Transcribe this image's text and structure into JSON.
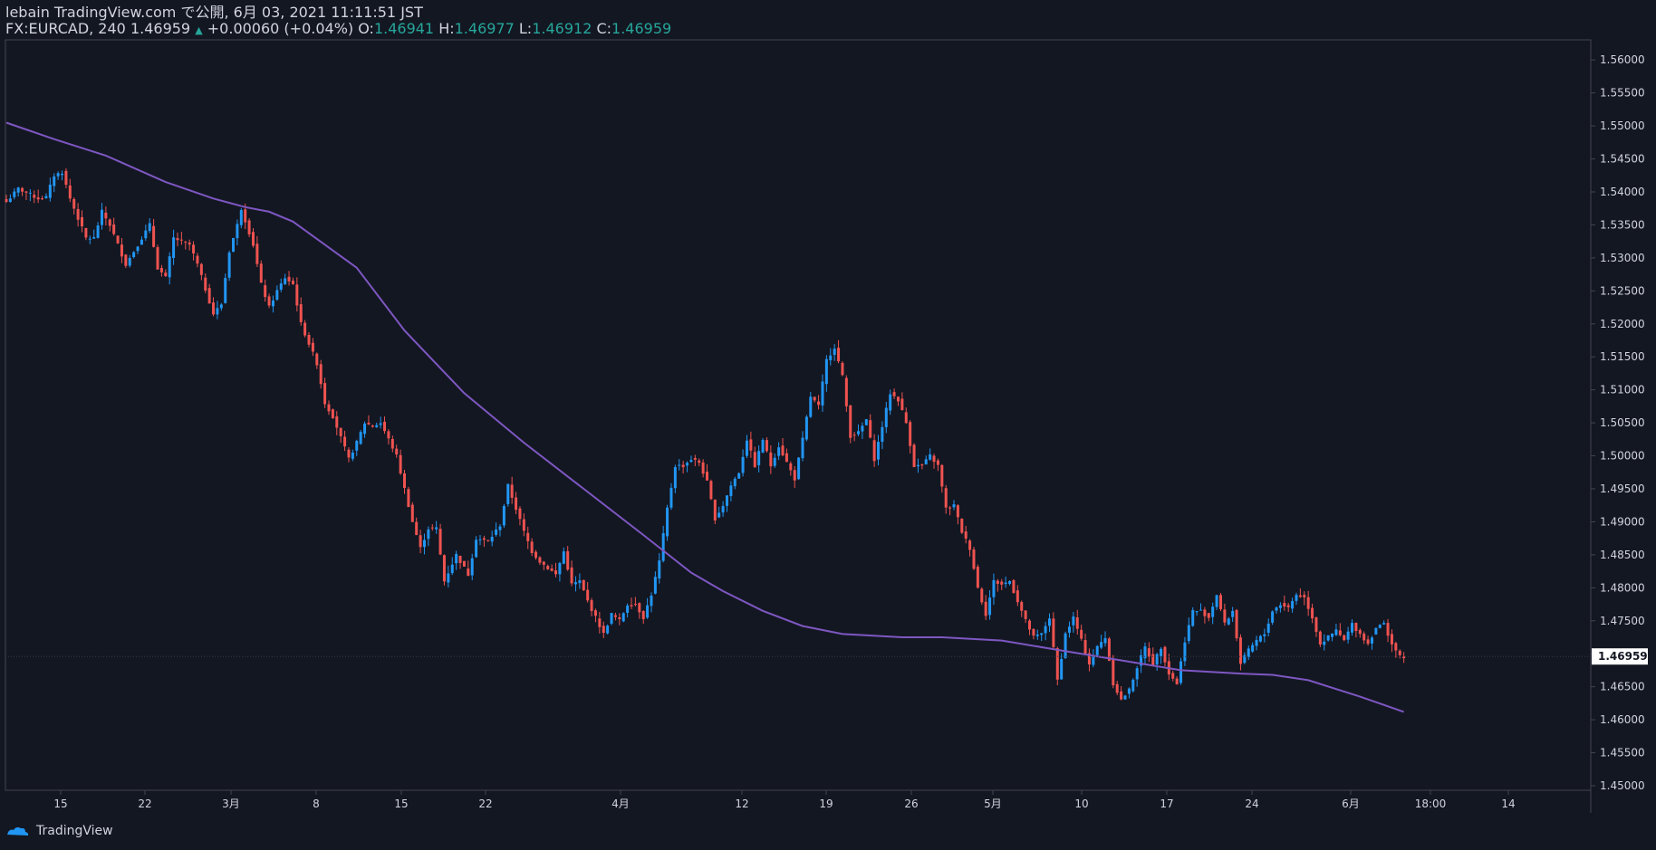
{
  "header": {
    "line1": "lebain TradingView.com で公開, 6月 03, 2021 11:11:51 JST",
    "symbol": "FX:EURCAD, 240",
    "last": "1.46959",
    "change": "+0.00060 (+0.04%)",
    "o_label": "O:",
    "o_val": "1.46941",
    "h_label": "H:",
    "h_val": "1.46977",
    "l_label": "L:",
    "l_val": "1.46912",
    "c_label": "C:",
    "c_val": "1.46959"
  },
  "footer": {
    "brand": "TradingView"
  },
  "colors": {
    "background": "#131722",
    "up": "#2196f3",
    "down": "#ef5350",
    "ma": "#7e57c2",
    "text": "#d1d4dc",
    "change": "#26a69a"
  },
  "chart_data": {
    "type": "candlestick",
    "title": "FX:EURCAD, 240",
    "ylim": [
      1.45,
      1.5625
    ],
    "y_ticks": [
      "1.56000",
      "1.55500",
      "1.55000",
      "1.54500",
      "1.54000",
      "1.53500",
      "1.53000",
      "1.52500",
      "1.52000",
      "1.51500",
      "1.51000",
      "1.50500",
      "1.50000",
      "1.49500",
      "1.49000",
      "1.48500",
      "1.48000",
      "1.47500",
      "1.47000",
      "1.46500",
      "1.46000",
      "1.45500",
      "1.45000"
    ],
    "x_ticks": [
      "15",
      "22",
      "3月",
      "8",
      "15",
      "22",
      "4月",
      "12",
      "19",
      "26",
      "5月",
      "10",
      "17",
      "24",
      "6月",
      "18:00",
      "14"
    ],
    "last_price_label": "1.46959",
    "close_path": [
      [
        0,
        1.5385
      ],
      [
        3,
        1.5405
      ],
      [
        8,
        1.539
      ],
      [
        10,
        1.5392
      ],
      [
        12,
        1.5425
      ],
      [
        14,
        1.543
      ],
      [
        16,
        1.539
      ],
      [
        20,
        1.533
      ],
      [
        22,
        1.533
      ],
      [
        24,
        1.537
      ],
      [
        26,
        1.535
      ],
      [
        30,
        1.529
      ],
      [
        32,
        1.531
      ],
      [
        36,
        1.535
      ],
      [
        38,
        1.5285
      ],
      [
        40,
        1.527
      ],
      [
        42,
        1.533
      ],
      [
        46,
        1.532
      ],
      [
        48,
        1.529
      ],
      [
        52,
        1.5215
      ],
      [
        54,
        1.523
      ],
      [
        56,
        1.531
      ],
      [
        58,
        1.535
      ],
      [
        59,
        1.5375
      ],
      [
        62,
        1.532
      ],
      [
        64,
        1.526
      ],
      [
        66,
        1.5225
      ],
      [
        68,
        1.525
      ],
      [
        70,
        1.527
      ],
      [
        72,
        1.526
      ],
      [
        74,
        1.52
      ],
      [
        78,
        1.514
      ],
      [
        80,
        1.508
      ],
      [
        82,
        1.506
      ],
      [
        86,
        1.4995
      ],
      [
        88,
        1.502
      ],
      [
        90,
        1.505
      ],
      [
        92,
        1.5045
      ],
      [
        94,
        1.505
      ],
      [
        98,
        1.5
      ],
      [
        102,
        1.49
      ],
      [
        104,
        1.486
      ],
      [
        106,
        1.489
      ],
      [
        108,
        1.489
      ],
      [
        110,
        1.481
      ],
      [
        113,
        1.485
      ],
      [
        116,
        1.482
      ],
      [
        118,
        1.4875
      ],
      [
        121,
        1.487
      ],
      [
        124,
        1.4895
      ],
      [
        126,
        1.4955
      ],
      [
        128,
        1.492
      ],
      [
        130,
        1.4885
      ],
      [
        132,
        1.4855
      ],
      [
        134,
        1.484
      ],
      [
        136,
        1.483
      ],
      [
        138,
        1.482
      ],
      [
        140,
        1.4855
      ],
      [
        142,
        1.4805
      ],
      [
        144,
        1.481
      ],
      [
        146,
        1.478
      ],
      [
        148,
        1.4755
      ],
      [
        150,
        1.473
      ],
      [
        152,
        1.476
      ],
      [
        154,
        1.475
      ],
      [
        156,
        1.4775
      ],
      [
        158,
        1.4775
      ],
      [
        160,
        1.4755
      ],
      [
        162,
        1.479
      ],
      [
        164,
        1.484
      ],
      [
        166,
        1.492
      ],
      [
        168,
        1.4985
      ],
      [
        170,
        1.4985
      ],
      [
        172,
        1.4995
      ],
      [
        174,
        1.499
      ],
      [
        176,
        1.496
      ],
      [
        178,
        1.4905
      ],
      [
        180,
        1.4925
      ],
      [
        182,
        1.4955
      ],
      [
        184,
        1.4975
      ],
      [
        186,
        1.5025
      ],
      [
        188,
        1.4985
      ],
      [
        190,
        1.5025
      ],
      [
        192,
        1.4985
      ],
      [
        194,
        1.5015
      ],
      [
        196,
        1.499
      ],
      [
        198,
        1.4965
      ],
      [
        200,
        1.5025
      ],
      [
        202,
        1.509
      ],
      [
        204,
        1.5075
      ],
      [
        206,
        1.5145
      ],
      [
        208,
        1.5165
      ],
      [
        210,
        1.512
      ],
      [
        212,
        1.503
      ],
      [
        214,
        1.5035
      ],
      [
        216,
        1.5055
      ],
      [
        218,
        1.4995
      ],
      [
        220,
        1.5045
      ],
      [
        222,
        1.5095
      ],
      [
        224,
        1.5085
      ],
      [
        226,
        1.505
      ],
      [
        228,
        1.4985
      ],
      [
        230,
        1.4985
      ],
      [
        232,
        1.5
      ],
      [
        234,
        1.4985
      ],
      [
        236,
        1.492
      ],
      [
        238,
        1.4925
      ],
      [
        240,
        1.4885
      ],
      [
        242,
        1.486
      ],
      [
        244,
        1.48
      ],
      [
        246,
        1.476
      ],
      [
        248,
        1.481
      ],
      [
        250,
        1.4805
      ],
      [
        252,
        1.481
      ],
      [
        254,
        1.478
      ],
      [
        256,
        1.475
      ],
      [
        258,
        1.4725
      ],
      [
        260,
        1.473
      ],
      [
        262,
        1.4755
      ],
      [
        264,
        1.466
      ],
      [
        266,
        1.473
      ],
      [
        268,
        1.4755
      ],
      [
        270,
        1.472
      ],
      [
        272,
        1.4685
      ],
      [
        274,
        1.471
      ],
      [
        276,
        1.4725
      ],
      [
        278,
        1.4655
      ],
      [
        280,
        1.463
      ],
      [
        282,
        1.4645
      ],
      [
        284,
        1.468
      ],
      [
        286,
        1.471
      ],
      [
        288,
        1.4685
      ],
      [
        290,
        1.471
      ],
      [
        292,
        1.467
      ],
      [
        294,
        1.4655
      ],
      [
        296,
        1.472
      ],
      [
        298,
        1.4765
      ],
      [
        300,
        1.4765
      ],
      [
        302,
        1.4755
      ],
      [
        304,
        1.479
      ],
      [
        306,
        1.4745
      ],
      [
        308,
        1.4765
      ],
      [
        310,
        1.4685
      ],
      [
        312,
        1.4705
      ],
      [
        314,
        1.472
      ],
      [
        316,
        1.473
      ],
      [
        318,
        1.4765
      ],
      [
        320,
        1.4775
      ],
      [
        322,
        1.477
      ],
      [
        324,
        1.479
      ],
      [
        326,
        1.4785
      ],
      [
        328,
        1.4755
      ],
      [
        330,
        1.4715
      ],
      [
        332,
        1.4725
      ],
      [
        334,
        1.4735
      ],
      [
        336,
        1.472
      ],
      [
        338,
        1.4745
      ],
      [
        340,
        1.473
      ],
      [
        342,
        1.4715
      ],
      [
        344,
        1.474
      ],
      [
        346,
        1.4745
      ],
      [
        348,
        1.4715
      ],
      [
        350,
        1.4695
      ],
      [
        351,
        1.46959
      ]
    ],
    "ma_path": [
      [
        0,
        1.5505
      ],
      [
        12,
        1.548
      ],
      [
        25,
        1.5455
      ],
      [
        40,
        1.5415
      ],
      [
        52,
        1.539
      ],
      [
        60,
        1.5377
      ],
      [
        66,
        1.537
      ],
      [
        72,
        1.5355
      ],
      [
        80,
        1.532
      ],
      [
        88,
        1.5285
      ],
      [
        100,
        1.519
      ],
      [
        115,
        1.5095
      ],
      [
        130,
        1.502
      ],
      [
        145,
        1.495
      ],
      [
        160,
        1.488
      ],
      [
        172,
        1.4823
      ],
      [
        180,
        1.4795
      ],
      [
        190,
        1.4765
      ],
      [
        200,
        1.4742
      ],
      [
        210,
        1.473
      ],
      [
        225,
        1.4725
      ],
      [
        235,
        1.4725
      ],
      [
        250,
        1.472
      ],
      [
        265,
        1.4705
      ],
      [
        280,
        1.469
      ],
      [
        295,
        1.4675
      ],
      [
        310,
        1.467
      ],
      [
        318,
        1.4668
      ],
      [
        327,
        1.466
      ],
      [
        340,
        1.4635
      ],
      [
        351,
        1.4612
      ]
    ]
  }
}
